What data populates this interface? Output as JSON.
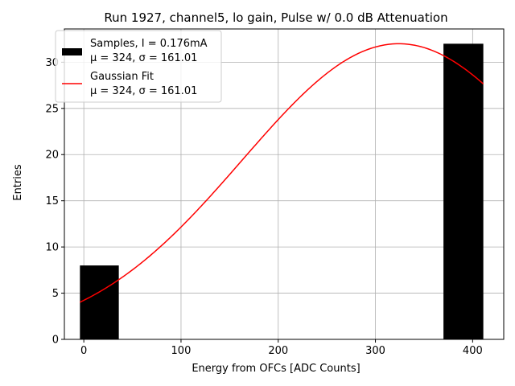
{
  "chart_data": {
    "type": "bar",
    "title": "Run 1927, channel5, lo gain, Pulse w/ 0.0 dB Attenuation",
    "xlabel": "Energy from OFCs [ADC Counts]",
    "ylabel": "Entries",
    "xlim": [
      -20,
      432
    ],
    "ylim": [
      0,
      33.6
    ],
    "xticks": [
      0,
      100,
      200,
      300,
      400
    ],
    "yticks": [
      0,
      5,
      10,
      15,
      20,
      25,
      30
    ],
    "grid": true,
    "legend_position": "top-left",
    "histogram": {
      "name": "Samples, I = 0.176mA",
      "stats": "μ = 324, σ = 161.01",
      "color": "#000000",
      "bins": [
        {
          "x0": -4,
          "x1": 36,
          "count": 8
        },
        {
          "x0": 36,
          "x1": 77,
          "count": 0
        },
        {
          "x0": 77,
          "x1": 118,
          "count": 0
        },
        {
          "x0": 118,
          "x1": 158,
          "count": 0
        },
        {
          "x0": 158,
          "x1": 199,
          "count": 0
        },
        {
          "x0": 199,
          "x1": 240,
          "count": 0
        },
        {
          "x0": 240,
          "x1": 280,
          "count": 0
        },
        {
          "x0": 280,
          "x1": 321,
          "count": 0
        },
        {
          "x0": 321,
          "x1": 370,
          "count": 0
        },
        {
          "x0": 370,
          "x1": 411,
          "count": 32
        }
      ]
    },
    "fit": {
      "name": "Gaussian Fit",
      "stats": "μ = 324, σ = 161.01",
      "color": "#ff0000",
      "amplitude": 32,
      "mu": 324,
      "sigma": 161.01,
      "x_range": [
        -4,
        411
      ]
    }
  }
}
